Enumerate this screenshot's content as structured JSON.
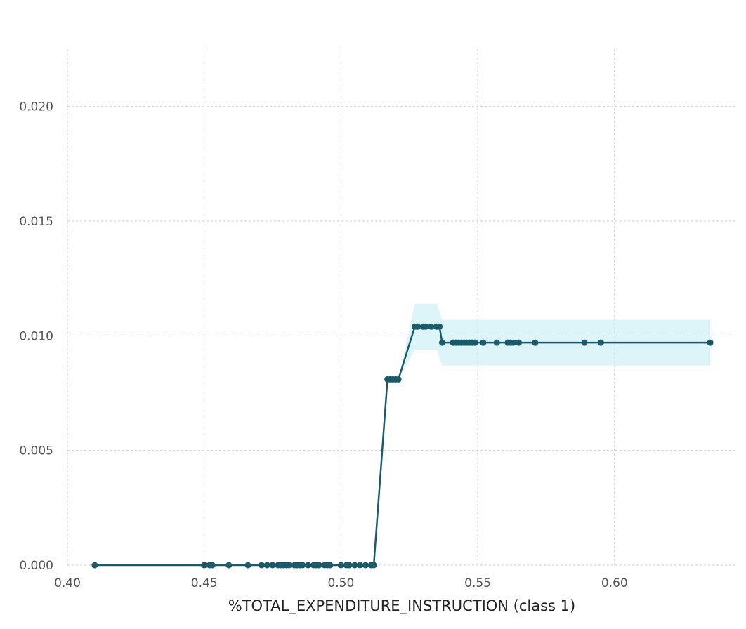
{
  "chart_data": {
    "type": "line",
    "xlabel": "%TOTAL_EXPENDITURE_INSTRUCTION (class 1)",
    "ylabel": "",
    "xlim": [
      0.4,
      0.645
    ],
    "ylim": [
      0.0,
      0.0225
    ],
    "x_ticks": [
      0.4,
      0.45,
      0.5,
      0.55,
      0.6
    ],
    "x_tick_labels": [
      "0.40",
      "0.45",
      "0.50",
      "0.55",
      "0.60"
    ],
    "y_ticks": [
      0.0,
      0.005,
      0.01,
      0.015,
      0.02
    ],
    "y_tick_labels": [
      "0.000",
      "0.005",
      "0.010",
      "0.015",
      "0.020"
    ],
    "grid": true,
    "legend": "none",
    "colors": {
      "line": "#1b5a68",
      "band": "#cbeef5",
      "grid": "#cfcfcf"
    },
    "series": [
      {
        "x": [
          0.41,
          0.45,
          0.452,
          0.453,
          0.459,
          0.466,
          0.471,
          0.473,
          0.475,
          0.477,
          0.478,
          0.479,
          0.48,
          0.481,
          0.483,
          0.484,
          0.485,
          0.486,
          0.488,
          0.49,
          0.491,
          0.492,
          0.494,
          0.495,
          0.496,
          0.5,
          0.502,
          0.503,
          0.505,
          0.507,
          0.509,
          0.511,
          0.512,
          0.517,
          0.518,
          0.519,
          0.52,
          0.521,
          0.527,
          0.528,
          0.53,
          0.531,
          0.533,
          0.535,
          0.536,
          0.537,
          0.541,
          0.542,
          0.543,
          0.544,
          0.545,
          0.546,
          0.547,
          0.548,
          0.549,
          0.552,
          0.557,
          0.561,
          0.562,
          0.563,
          0.565,
          0.571,
          0.589,
          0.595,
          0.635
        ],
        "y": [
          0.0,
          0.0,
          0.0,
          0.0,
          0.0,
          0.0,
          0.0,
          0.0,
          0.0,
          0.0,
          0.0,
          0.0,
          0.0,
          0.0,
          0.0,
          0.0,
          0.0,
          0.0,
          0.0,
          0.0,
          0.0,
          0.0,
          0.0,
          0.0,
          0.0,
          0.0,
          0.0,
          0.0,
          0.0,
          0.0,
          0.0,
          0.0,
          0.0,
          0.0081,
          0.0081,
          0.0081,
          0.0081,
          0.0081,
          0.0104,
          0.0104,
          0.0104,
          0.0104,
          0.0104,
          0.0104,
          0.0104,
          0.0097,
          0.0097,
          0.0097,
          0.0097,
          0.0097,
          0.0097,
          0.0097,
          0.0097,
          0.0097,
          0.0097,
          0.0097,
          0.0097,
          0.0097,
          0.0097,
          0.0097,
          0.0097,
          0.0097,
          0.0097,
          0.0097,
          0.0097
        ]
      }
    ],
    "band": [
      {
        "x": 0.41,
        "lower": 0.0,
        "upper": 0.0
      },
      {
        "x": 0.511,
        "lower": 0.0,
        "upper": 0.0
      },
      {
        "x": 0.512,
        "lower": 0.0,
        "upper": 0.0
      },
      {
        "x": 0.517,
        "lower": 0.0081,
        "upper": 0.0081
      },
      {
        "x": 0.521,
        "lower": 0.0081,
        "upper": 0.0081
      },
      {
        "x": 0.527,
        "lower": 0.0094,
        "upper": 0.0114
      },
      {
        "x": 0.535,
        "lower": 0.0094,
        "upper": 0.0114
      },
      {
        "x": 0.537,
        "lower": 0.0087,
        "upper": 0.0107
      },
      {
        "x": 0.635,
        "lower": 0.0087,
        "upper": 0.0107
      }
    ]
  }
}
